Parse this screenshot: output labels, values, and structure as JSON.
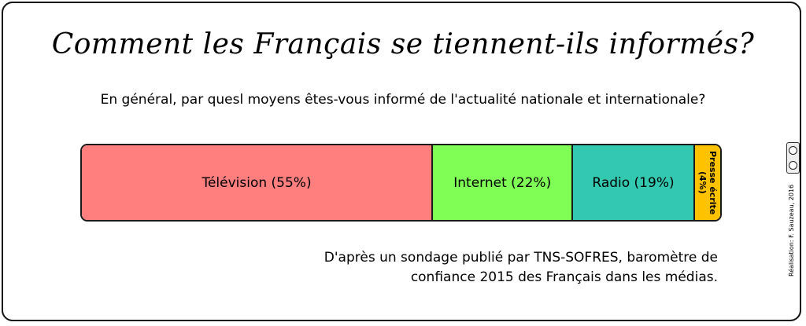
{
  "chart_data": {
    "type": "bar",
    "orientation": "horizontal-stacked",
    "title": "Comment les Français se tiennent-ils informés?",
    "subtitle": "En général, par quesl moyens êtes-vous informé de l'actualité nationale et internationale?",
    "categories": [
      "Télévision",
      "Internet",
      "Radio",
      "Presse écrite"
    ],
    "values": [
      55,
      22,
      19,
      4
    ],
    "labels": [
      "Télévision (55%)",
      "Internet (22%)",
      "Radio (19%)",
      "Presse écrite (4%)"
    ],
    "colors": [
      "#ff7f7f",
      "#7fff55",
      "#33c9b0",
      "#ffc200"
    ],
    "unit": "%",
    "grid": false,
    "legend": "none"
  },
  "source_lines": [
    "D'après un sondage publié par TNS-SOFRES, baromètre de",
    "confiance 2015 des Français dans les médias."
  ],
  "credit": "Réalisation: F. Sauzeau, 2016",
  "license_icon": "cc-by-icon"
}
